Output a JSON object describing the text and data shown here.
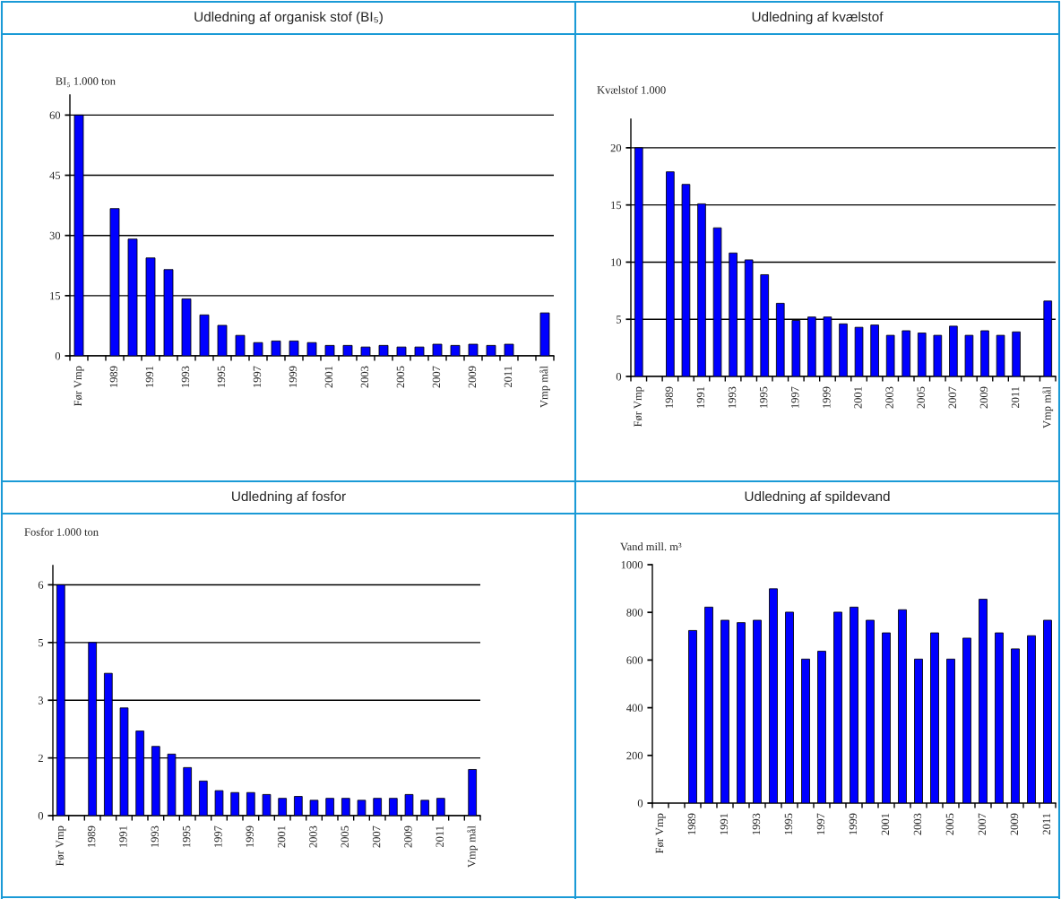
{
  "chart_data": [
    {
      "type": "bar",
      "title": "Udledning af organisk stof (BI₅)",
      "ylabel": "BI₅ 1.000 ton",
      "color": "#0000ff",
      "categories": [
        "Før Vmp",
        null,
        "1989",
        null,
        "1991",
        null,
        "1993",
        null,
        "1995",
        null,
        "1997",
        null,
        "1999",
        null,
        "2001",
        null,
        "2003",
        null,
        "2005",
        null,
        "2007",
        null,
        "2009",
        null,
        "2011",
        null,
        "Vmp mål"
      ],
      "values": [
        60,
        null,
        36.7,
        29.1,
        24.4,
        21.5,
        14.2,
        10.2,
        7.6,
        5.1,
        3.3,
        3.7,
        3.7,
        3.3,
        2.6,
        2.6,
        2.2,
        2.6,
        2.2,
        2.2,
        2.9,
        2.6,
        2.9,
        2.6,
        2.9,
        null,
        10.7
      ],
      "ylim": [
        0,
        65
      ],
      "yticks": [
        0,
        15,
        30,
        45,
        60
      ],
      "grid": "y",
      "legend": false
    },
    {
      "type": "bar",
      "title": "Udledning af kvælstof",
      "ylabel": "Kvælstof 1.000",
      "color": "#0000ff",
      "categories": [
        "Før Vmp",
        null,
        "1989",
        null,
        "1991",
        null,
        "1993",
        null,
        "1995",
        null,
        "1997",
        null,
        "1999",
        null,
        "2001",
        null,
        "2003",
        null,
        "2005",
        null,
        "2007",
        null,
        "2009",
        null,
        "2011",
        null,
        "Vmp mål"
      ],
      "values": [
        20,
        null,
        17.9,
        16.8,
        15.1,
        13.0,
        10.8,
        10.2,
        8.9,
        6.4,
        4.9,
        5.2,
        5.2,
        4.6,
        4.3,
        4.5,
        3.6,
        4.0,
        3.8,
        3.6,
        4.4,
        3.6,
        4.0,
        3.6,
        3.9,
        null,
        6.6
      ],
      "ylim": [
        0,
        22.5
      ],
      "yticks": [
        0,
        5,
        10,
        15,
        20
      ],
      "grid": "y",
      "legend": false
    },
    {
      "type": "bar",
      "title": "Udledning af fosfor",
      "ylabel": "Fosfor 1.000 ton",
      "color": "#0000ff",
      "categories": [
        "Før Vmp",
        null,
        "1989",
        null,
        "1991",
        null,
        "1993",
        null,
        "1995",
        null,
        "1997",
        null,
        "1999",
        null,
        "2001",
        null,
        "2003",
        null,
        "2005",
        null,
        "2007",
        null,
        "2009",
        null,
        "2011",
        null,
        "Vmp mål"
      ],
      "values": [
        6.0,
        null,
        4.5,
        3.7,
        2.8,
        2.2,
        1.8,
        1.6,
        1.25,
        0.9,
        0.65,
        0.6,
        0.6,
        0.55,
        0.45,
        0.5,
        0.4,
        0.45,
        0.45,
        0.4,
        0.45,
        0.45,
        0.55,
        0.4,
        0.45,
        null,
        1.2
      ],
      "ylim": [
        0,
        6.5
      ],
      "yticks": [
        0,
        {
          "value": 1.5,
          "label": "2"
        },
        3,
        {
          "value": 4.5,
          "label": "5"
        },
        6
      ],
      "grid": "y",
      "legend": false
    },
    {
      "type": "bar",
      "title": "Udledning af spildevand",
      "ylabel": "Vand mill. m³",
      "color": "#0000ff",
      "categories": [
        "Før Vmp",
        null,
        "1989",
        null,
        "1991",
        null,
        "1993",
        null,
        "1995",
        null,
        "1997",
        null,
        "1999",
        null,
        "2001",
        null,
        "2003",
        null,
        "2005",
        null,
        "2007",
        null,
        "2009",
        null,
        "2011"
      ],
      "values": [
        null,
        null,
        724,
        822,
        767,
        757,
        767,
        899,
        801,
        604,
        637,
        801,
        822,
        767,
        714,
        811,
        604,
        714,
        604,
        692,
        855,
        714,
        647,
        702,
        767
      ],
      "ylim": [
        0,
        1000
      ],
      "yticks": [
        0,
        200,
        400,
        600,
        800,
        1000
      ],
      "grid": false,
      "legend": false
    }
  ]
}
